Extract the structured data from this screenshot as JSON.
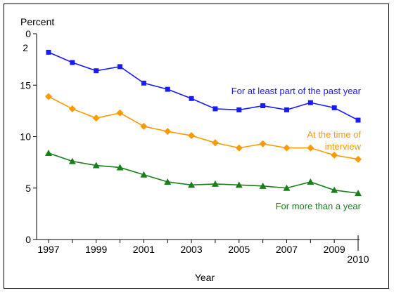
{
  "chart_data": {
    "type": "line",
    "title": "",
    "ylabel": "Percent",
    "xlabel": "Year",
    "ylim": [
      0,
      20
    ],
    "y_ticks": [
      0,
      5,
      10,
      15
    ],
    "y_top_tick_label": "0",
    "y_top_tick_label_2": "2",
    "x": [
      1997,
      1998,
      1999,
      2000,
      2001,
      2002,
      2003,
      2004,
      2005,
      2006,
      2007,
      2008,
      2009,
      2010
    ],
    "x_tick_labels": [
      "1997",
      "1999",
      "2001",
      "2003",
      "2005",
      "2007",
      "2009"
    ],
    "x_last_label": "2010",
    "grid": false,
    "series": [
      {
        "name": "For at least part of the past year",
        "color": "#1a1aff",
        "marker": "square",
        "values": [
          18.2,
          17.2,
          16.4,
          16.8,
          15.2,
          14.6,
          13.7,
          12.7,
          12.6,
          13.0,
          12.6,
          13.3,
          12.8,
          11.6
        ]
      },
      {
        "name": "At the time of interview",
        "name_line2": "interview",
        "name_line1": "At the time of",
        "color": "#ff9900",
        "marker": "diamond",
        "values": [
          13.9,
          12.7,
          11.8,
          12.3,
          11.0,
          10.5,
          10.1,
          9.4,
          8.9,
          9.3,
          8.9,
          8.9,
          8.2,
          7.8
        ]
      },
      {
        "name": "For more than a year",
        "color": "#1a7f1a",
        "marker": "triangle",
        "values": [
          8.4,
          7.6,
          7.2,
          7.0,
          6.3,
          5.6,
          5.3,
          5.4,
          5.3,
          5.2,
          5.0,
          5.6,
          4.8,
          4.5
        ]
      }
    ]
  }
}
